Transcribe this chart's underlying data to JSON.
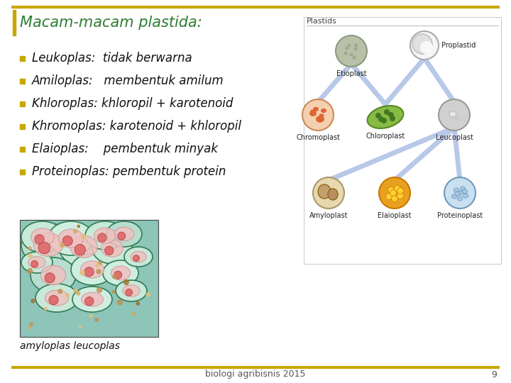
{
  "title": "Macam-macam plastida:",
  "title_color": "#2E7D32",
  "background_color": "#FFFFFF",
  "border_color": "#C8A800",
  "bullet_color": "#C8A800",
  "bullet_items": [
    "Leukoplas:  tidak berwarna",
    "Amiloplas:   membentuk amilum",
    "Khloroplas: khloropil + karotenoid",
    "Khromoplas: karotenoid + khloropil",
    "Elaioplas:    pembentuk minyak",
    "Proteinoplas: pembentuk protein"
  ],
  "caption": "amyloplas leucoplas",
  "footer": "biologi agribisnis 2015",
  "page_number": "9",
  "text_color": "#111111",
  "font_size_title": 15,
  "font_size_bullets": 12,
  "font_size_caption": 10,
  "font_size_footer": 9,
  "connector_color": "#B8C8E8",
  "diagram_border_color": "#CCCCCC"
}
